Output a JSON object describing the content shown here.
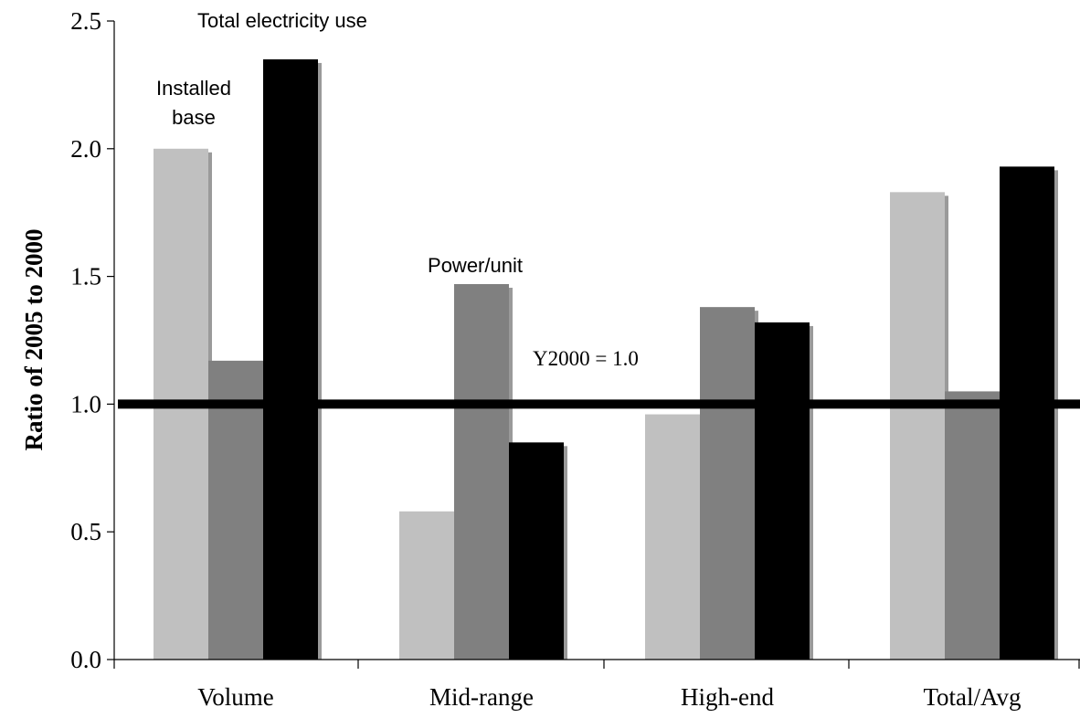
{
  "chart_data": {
    "type": "bar",
    "title": "",
    "xlabel": "",
    "ylabel": "Ratio of 2005 to 2000",
    "ylim": [
      0,
      2.5
    ],
    "yticks": [
      "0.0",
      "0.5",
      "1.0",
      "1.5",
      "2.0",
      "2.5"
    ],
    "yticks_values": [
      0,
      0.5,
      1.0,
      1.5,
      2.0,
      2.5
    ],
    "grid": false,
    "legend": "none",
    "categories": [
      "Volume",
      "Mid-range",
      "High-end",
      "Total/Avg"
    ],
    "series": [
      {
        "key": "installed",
        "values": [
          2.0,
          0.58,
          0.96,
          1.83
        ],
        "color": "#c0c0c0"
      },
      {
        "key": "power",
        "values": [
          1.17,
          1.47,
          1.38,
          1.05
        ],
        "color": "#808080"
      },
      {
        "key": "total",
        "values": [
          2.35,
          0.85,
          1.32,
          1.93
        ],
        "color": "#000000"
      }
    ],
    "reference_line": {
      "value": 1.0,
      "label": "Y2000 = 1.0",
      "color": "#000000"
    },
    "annotations": {
      "installed_base": [
        "Installed",
        "base"
      ],
      "power_unit": "Power/unit",
      "total_electricity": "Total electricity use"
    }
  }
}
